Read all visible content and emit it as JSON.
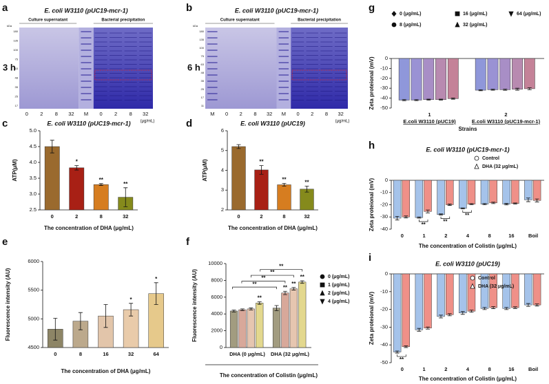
{
  "gels": [
    {
      "panel": "a",
      "title": "E. coli W3110 (pUC19-mcr-1)",
      "unit": "kDa",
      "time": "3 h",
      "groups": [
        "Culture supernatant",
        "Bacterial precipitation"
      ],
      "lanes": [
        "0",
        "2",
        "8",
        "32",
        "M",
        "0",
        "2",
        "8",
        "32"
      ],
      "concentration_unit": "(μg/mL)",
      "markers": [
        "180",
        "135",
        "100",
        "75",
        "63",
        "48",
        "35",
        "25",
        "17"
      ]
    },
    {
      "panel": "b",
      "title": "E. coli W3110 (pUC19-mcr-1)",
      "unit": "kDa",
      "time": "6 h",
      "groups": [
        "Culture supernatant",
        "Bacterial precipitation"
      ],
      "lanes": [
        "M",
        "0",
        "2",
        "8",
        "32",
        "M",
        "0",
        "2",
        "8",
        "32"
      ],
      "concentration_unit": "(μg/mL)",
      "markers": [
        "180",
        "135",
        "100",
        "75",
        "63",
        "48",
        "35",
        "25",
        "17",
        "11"
      ]
    }
  ],
  "chart_data": [
    {
      "type": "bar",
      "panel": "c",
      "title": "E. coli W3110 (pUC19-mcr-1)",
      "y_label": "ATP(μM)",
      "x_label": "The concentration of DHA (μg/mL)",
      "categories": [
        "0",
        "2",
        "8",
        "32"
      ],
      "values": [
        4.5,
        3.83,
        3.3,
        2.9
      ],
      "errors": [
        0.2,
        0.07,
        0.03,
        0.3
      ],
      "colors": [
        "#9a6a2e",
        "#a82015",
        "#d67d20",
        "#858a1c"
      ],
      "significance": [
        null,
        "*",
        "**",
        "**"
      ],
      "ylim": [
        2.5,
        5
      ],
      "yticks": [
        2.5,
        {
          "value": 3,
          "label": "3.0"
        },
        3.5,
        {
          "value": 4,
          "label": "4.0"
        },
        4.5,
        {
          "value": 5,
          "label": "5.0"
        }
      ]
    },
    {
      "type": "bar",
      "panel": "d",
      "title": "E. coli W3110 (pUC19)",
      "y_label": "ATP(μM)",
      "x_label": "The concentration of DHA (μg/mL)",
      "categories": [
        "0",
        "2",
        "8",
        "32"
      ],
      "values": [
        5.2,
        4.02,
        3.27,
        3.05
      ],
      "errors": [
        0.1,
        0.22,
        0.07,
        0.15
      ],
      "colors": [
        "#9a6a2e",
        "#a82015",
        "#d67d20",
        "#858a1c"
      ],
      "significance": [
        null,
        "**",
        "**",
        "**"
      ],
      "ylim": [
        2,
        6
      ],
      "yticks": [
        2,
        3,
        4,
        5,
        6
      ]
    },
    {
      "type": "bar",
      "panel": "e",
      "y_label": "Fluorescence intensity (AU)",
      "x_label": "The concentration of DHA (μg/mL)",
      "categories": [
        "0",
        "8",
        "16",
        "32",
        "64"
      ],
      "values": [
        4820,
        4960,
        5050,
        5160,
        5440
      ],
      "errors": [
        190,
        150,
        200,
        110,
        190
      ],
      "colors": [
        "#8d8566",
        "#bca98c",
        "#e2c5aa",
        "#e9cbaa",
        "#e6c98b"
      ],
      "significance": [
        null,
        null,
        null,
        "*",
        "*"
      ],
      "ylim": [
        4500,
        6000
      ],
      "yticks": [
        4500,
        5000,
        5500,
        6000
      ]
    },
    {
      "type": "bar",
      "panel": "f",
      "y_label": "Fluorescence intensity (AU)",
      "x_label": "The concentration of Colistin (μg/mL)",
      "legend": "right",
      "categories": [
        "DHA (0 μg/mL)",
        "DHA (32 μg/mL)"
      ],
      "series": [
        {
          "name": "0 (μg/mL)",
          "color": "#a29c80",
          "values": [
            4350,
            4700
          ],
          "errors": [
            120,
            300
          ],
          "significance": [
            null,
            null
          ]
        },
        {
          "name": "1 (μg/mL)",
          "color": "#d8a89a",
          "values": [
            4500,
            6500
          ],
          "errors": [
            100,
            200
          ],
          "significance": [
            null,
            "**"
          ]
        },
        {
          "name": "2 (μg/mL)",
          "color": "#e6c6b0",
          "values": [
            4600,
            7000
          ],
          "errors": [
            120,
            150
          ],
          "significance": [
            null,
            "**"
          ]
        },
        {
          "name": "4 (μg/mL)",
          "color": "#e3d88e",
          "values": [
            5300,
            7800
          ],
          "errors": [
            150,
            150
          ],
          "significance": [
            "**",
            "**"
          ]
        }
      ],
      "brackets": [
        "**",
        "**",
        "**",
        "**"
      ],
      "ylim": [
        0,
        10000
      ],
      "yticks": [
        0,
        2000,
        4000,
        6000,
        8000,
        10000
      ]
    },
    {
      "type": "bar",
      "panel": "g",
      "y_label": "Zeta proteional (mV)",
      "x_label": "Strains",
      "legend": "top",
      "categories": [
        "1",
        "2"
      ],
      "category_labels": [
        "E.coli W3110 (pUC19)",
        "E.coli W3110 (pUC19-mcr-1)"
      ],
      "series": [
        {
          "name": "0 (μg/mL)",
          "color": "#8f97da",
          "values": [
            -42,
            -32
          ],
          "errors": [
            0.6,
            0.5
          ]
        },
        {
          "name": "8 (μg/mL)",
          "color": "#9a92d4",
          "values": [
            -42,
            -31.5
          ],
          "errors": [
            0.5,
            0.5
          ]
        },
        {
          "name": "16 (μg/mL)",
          "color": "#a88ec6",
          "values": [
            -41.5,
            -31.5
          ],
          "errors": [
            0.5,
            0.6
          ]
        },
        {
          "name": "32 (μg/mL)",
          "color": "#b88ab0",
          "values": [
            -41.5,
            -31
          ],
          "errors": [
            0.5,
            1
          ]
        },
        {
          "name": "64 (μg/mL)",
          "color": "#c48298",
          "values": [
            -40.5,
            -30.5
          ],
          "errors": [
            0.6,
            1
          ]
        }
      ],
      "ylim": [
        -50,
        0
      ],
      "yticks": [
        0,
        -10,
        -20,
        -30,
        -40,
        -50
      ]
    },
    {
      "type": "bar",
      "panel": "h",
      "title": "E. coli W3110 (pUC19-mcr-1)",
      "y_label": "Zeta proteional (mV)",
      "x_label": "The concentration of Colistin (μg/mL)",
      "legend": "top-right",
      "categories": [
        "0",
        "1",
        "2",
        "4",
        "8",
        "16",
        "Boil"
      ],
      "series": [
        {
          "name": "Control",
          "color": "#a5c3ea",
          "values": [
            -31,
            -30.5,
            -28,
            -23,
            -19.5,
            -19.5,
            -16
          ],
          "errors": [
            1.5,
            0.5,
            0.5,
            0.4,
            0.5,
            0.6,
            1.5
          ]
        },
        {
          "name": "DHA (32 μg/mL)",
          "color": "#ef9088",
          "values": [
            -30,
            -25.5,
            -20,
            -19.5,
            -18.5,
            -19,
            -16.5
          ],
          "errors": [
            0.8,
            1.2,
            0.6,
            0.4,
            0.6,
            0.5,
            1.2
          ],
          "significance": [
            null,
            "**",
            "**",
            "**",
            null,
            null,
            null
          ]
        }
      ],
      "ylim": [
        -40,
        0
      ],
      "yticks": [
        0,
        -10,
        -20,
        -30,
        -40
      ]
    },
    {
      "type": "bar",
      "panel": "i",
      "title": "E. coli W3110 (pUC19)",
      "y_label": "Zeta proteional (mV)",
      "x_label": "The concentration of Colistin (μg/mL)",
      "legend": "top-right",
      "categories": [
        "0",
        "1",
        "2",
        "4",
        "8",
        "16",
        "Boil"
      ],
      "series": [
        {
          "name": "Control",
          "color": "#a5c3ea",
          "values": [
            -44,
            -31.5,
            -24,
            -22,
            -19.5,
            -19.5,
            -17.5
          ],
          "errors": [
            0.6,
            0.8,
            0.8,
            0.8,
            0.6,
            0.6,
            0.8
          ]
        },
        {
          "name": "DHA (32 μg/mL)",
          "color": "#ef9088",
          "values": [
            -41,
            -30.5,
            -23,
            -21,
            -19,
            -19,
            -17.5
          ],
          "errors": [
            0.5,
            0.6,
            0.6,
            0.6,
            0.6,
            0.5,
            0.6
          ],
          "significance": [
            "**",
            null,
            null,
            null,
            null,
            null,
            null
          ]
        }
      ],
      "ylim": [
        -50,
        0
      ],
      "yticks": [
        0,
        -10,
        -20,
        -30,
        -40,
        -50
      ]
    }
  ]
}
